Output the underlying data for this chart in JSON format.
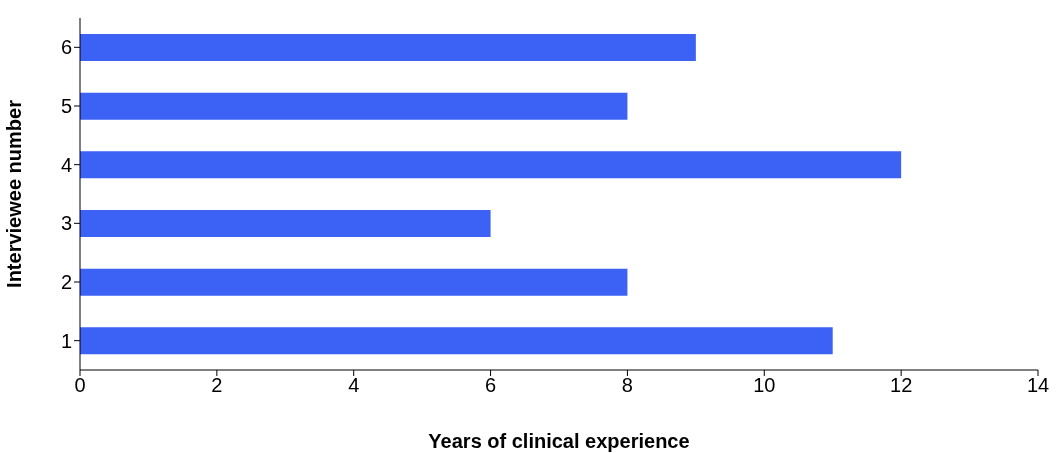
{
  "chart_data": {
    "type": "bar",
    "orientation": "horizontal",
    "xlabel": "Years of clinical experience",
    "ylabel": "Interviewee number",
    "categories": [
      "6",
      "5",
      "4",
      "3",
      "2",
      "1"
    ],
    "values": [
      9,
      8,
      12,
      6,
      8,
      11
    ],
    "color": "#3b62f4",
    "xlim": [
      0,
      14
    ],
    "xticks": [
      0,
      2,
      4,
      6,
      8,
      10,
      12,
      14
    ]
  }
}
